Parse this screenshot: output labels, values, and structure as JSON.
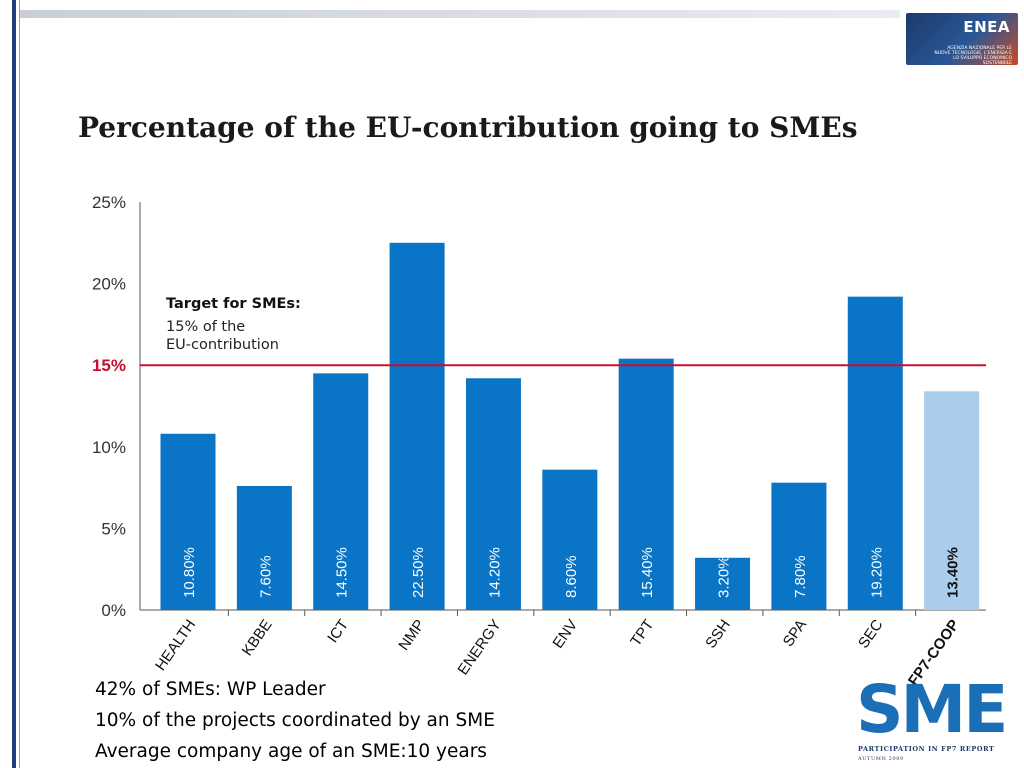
{
  "header": {
    "logo_text": "ENEA",
    "logo_subtitle": "AGENZIA NAZIONALE PER LE NUOVE TECNOLOGIE, L'ENERGIA E LO SVILUPPO ECONOMICO SOSTENIBILE"
  },
  "chart_data": {
    "type": "bar",
    "title": "Percentage of the EU-contribution going to SMEs",
    "xlabel": "",
    "ylabel": "",
    "ylim": [
      0,
      25
    ],
    "yticks": [
      "0%",
      "5%",
      "10%",
      "15%",
      "20%",
      "25%"
    ],
    "categories": [
      "HEALTH",
      "KBBE",
      "ICT",
      "NMP",
      "ENERGY",
      "ENV",
      "TPT",
      "SSH",
      "SPA",
      "SEC",
      "FP7-COOP"
    ],
    "values": [
      10.8,
      7.6,
      14.5,
      22.5,
      14.2,
      8.6,
      15.4,
      3.2,
      7.8,
      19.2,
      13.4
    ],
    "value_labels": [
      "10.80%",
      "7.60%",
      "14.50%",
      "22.50%",
      "14.20%",
      "8.60%",
      "15.40%",
      "3.20%",
      "7.80%",
      "19.20%",
      "13.40%"
    ],
    "bar_color": "#0a74c6",
    "highlight_color": "#a9cdea",
    "highlight_category": "FP7-COOP",
    "target": {
      "value": 15,
      "label": "15%",
      "color": "#c8102e",
      "annotation_title": "Target for SMEs:",
      "annotation_lines": [
        "15% of the",
        "EU-contribution"
      ]
    },
    "grid": false
  },
  "notes": [
    "42% of SMEs: WP Leader",
    "10% of the projects coordinated by an SME",
    "Average company age of an SME:10 years"
  ],
  "footer_logo": {
    "text": "SME",
    "caption": "PARTICIPATION IN FP7 REPORT",
    "season": "AUTUMN 2009"
  }
}
